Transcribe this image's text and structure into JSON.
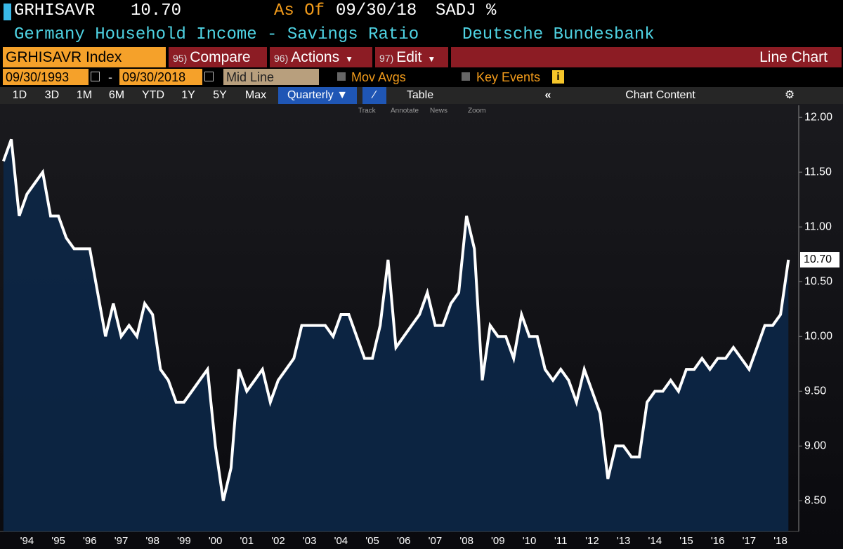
{
  "header": {
    "ticker": "GRHISAVR",
    "last_price": "10.70",
    "as_of_label": "As Of",
    "as_of_date": "09/30/18",
    "units": "SADJ %",
    "title": "Germany Household Income - Savings Ratio",
    "source": "Deutsche Bundesbank"
  },
  "toolbar": {
    "security": "GRHISAVR Index",
    "buttons": [
      {
        "code": "95)",
        "label": "Compare"
      },
      {
        "code": "96)",
        "label": "Actions"
      },
      {
        "code": "97)",
        "label": "Edit"
      }
    ],
    "chart_type_label": "Line Chart"
  },
  "range": {
    "start": "09/30/1993",
    "separator": "-",
    "end": "09/30/2018",
    "style": "Mid Line",
    "mov_avgs": "Mov Avgs",
    "key_events": "Key Events"
  },
  "tabs": {
    "periods": [
      "1D",
      "3D",
      "1M",
      "6M",
      "YTD",
      "1Y",
      "5Y",
      "Max"
    ],
    "frequency": "Quarterly ▼",
    "table": "Table",
    "chart_content": "Chart Content"
  },
  "tools": [
    "Track",
    "Annotate",
    "News",
    "Zoom"
  ],
  "chart_data": {
    "type": "line",
    "color": "#ffffff",
    "area_color": "#0c2747",
    "x": [
      1993.75,
      1994,
      1994.25,
      1994.5,
      1994.75,
      1995,
      1995.25,
      1995.5,
      1995.75,
      1996,
      1996.25,
      1996.5,
      1996.75,
      1997,
      1997.25,
      1997.5,
      1997.75,
      1998,
      1998.25,
      1998.5,
      1998.75,
      1999,
      1999.25,
      1999.5,
      1999.75,
      2000,
      2000.25,
      2000.5,
      2000.75,
      2001,
      2001.25,
      2001.5,
      2001.75,
      2002,
      2002.25,
      2002.5,
      2002.75,
      2003,
      2003.25,
      2003.5,
      2003.75,
      2004,
      2004.25,
      2004.5,
      2004.75,
      2005,
      2005.25,
      2005.5,
      2005.75,
      2006,
      2006.25,
      2006.5,
      2006.75,
      2007,
      2007.25,
      2007.5,
      2007.75,
      2008,
      2008.25,
      2008.5,
      2008.75,
      2009,
      2009.25,
      2009.5,
      2009.75,
      2010,
      2010.25,
      2010.5,
      2010.75,
      2011,
      2011.25,
      2011.5,
      2011.75,
      2012,
      2012.25,
      2012.5,
      2012.75,
      2013,
      2013.25,
      2013.5,
      2013.75,
      2014,
      2014.25,
      2014.5,
      2014.75,
      2015,
      2015.25,
      2015.5,
      2015.75,
      2016,
      2016.25,
      2016.5,
      2016.75,
      2017,
      2017.25,
      2017.5,
      2017.75,
      2018,
      2018.25,
      2018.5,
      2018.75
    ],
    "values": [
      11.6,
      11.8,
      11.1,
      11.3,
      11.4,
      11.5,
      11.1,
      11.1,
      10.9,
      10.8,
      10.8,
      10.8,
      10.4,
      10.0,
      10.3,
      10.0,
      10.1,
      10.0,
      10.3,
      10.2,
      9.7,
      9.6,
      9.4,
      9.4,
      9.5,
      9.6,
      9.7,
      9.0,
      8.5,
      8.8,
      9.7,
      9.5,
      9.6,
      9.7,
      9.4,
      9.6,
      9.7,
      9.8,
      10.1,
      10.1,
      10.1,
      10.1,
      10.0,
      10.2,
      10.2,
      10.0,
      9.8,
      9.8,
      10.1,
      10.7,
      9.9,
      10.0,
      10.1,
      10.2,
      10.4,
      10.1,
      10.1,
      10.3,
      10.4,
      11.1,
      10.8,
      9.6,
      10.1,
      10.0,
      10.0,
      9.8,
      10.2,
      10.0,
      10.0,
      9.7,
      9.6,
      9.7,
      9.6,
      9.4,
      9.7,
      9.5,
      9.3,
      8.7,
      9.0,
      9.0,
      8.9,
      8.9,
      9.4,
      9.5,
      9.5,
      9.6,
      9.5,
      9.7,
      9.7,
      9.8,
      9.7,
      9.8,
      9.8,
      9.9,
      9.8,
      9.7,
      9.9,
      10.1,
      10.1,
      10.2,
      10.7
    ],
    "xlim": [
      1993.64,
      2019.08
    ],
    "xticks": [
      {
        "value": 1994.5,
        "label": "'94"
      },
      {
        "value": 1995.5,
        "label": "'95"
      },
      {
        "value": 1996.5,
        "label": "'96"
      },
      {
        "value": 1997.5,
        "label": "'97"
      },
      {
        "value": 1998.5,
        "label": "'98"
      },
      {
        "value": 1999.5,
        "label": "'99"
      },
      {
        "value": 2000.5,
        "label": "'00"
      },
      {
        "value": 2001.5,
        "label": "'01"
      },
      {
        "value": 2002.5,
        "label": "'02"
      },
      {
        "value": 2003.5,
        "label": "'03"
      },
      {
        "value": 2004.5,
        "label": "'04"
      },
      {
        "value": 2005.5,
        "label": "'05"
      },
      {
        "value": 2006.5,
        "label": "'06"
      },
      {
        "value": 2007.5,
        "label": "'07"
      },
      {
        "value": 2008.5,
        "label": "'08"
      },
      {
        "value": 2009.5,
        "label": "'09"
      },
      {
        "value": 2010.5,
        "label": "'10"
      },
      {
        "value": 2011.5,
        "label": "'11"
      },
      {
        "value": 2012.5,
        "label": "'12"
      },
      {
        "value": 2013.5,
        "label": "'13"
      },
      {
        "value": 2014.5,
        "label": "'14"
      },
      {
        "value": 2015.5,
        "label": "'15"
      },
      {
        "value": 2016.5,
        "label": "'16"
      },
      {
        "value": 2017.5,
        "label": "'17"
      },
      {
        "value": 2018.5,
        "label": "'18"
      }
    ],
    "ylim": [
      8.22,
      12.11
    ],
    "yticks": [
      {
        "value": 8.5,
        "label": "8.50"
      },
      {
        "value": 9,
        "label": "9.00"
      },
      {
        "value": 9.5,
        "label": "9.50"
      },
      {
        "value": 10,
        "label": "10.00"
      },
      {
        "value": 10.5,
        "label": "10.50"
      },
      {
        "value": 11,
        "label": "11.00"
      },
      {
        "value": 11.5,
        "label": "11.50"
      },
      {
        "value": 12,
        "label": "12.00"
      }
    ],
    "grid": false
  }
}
